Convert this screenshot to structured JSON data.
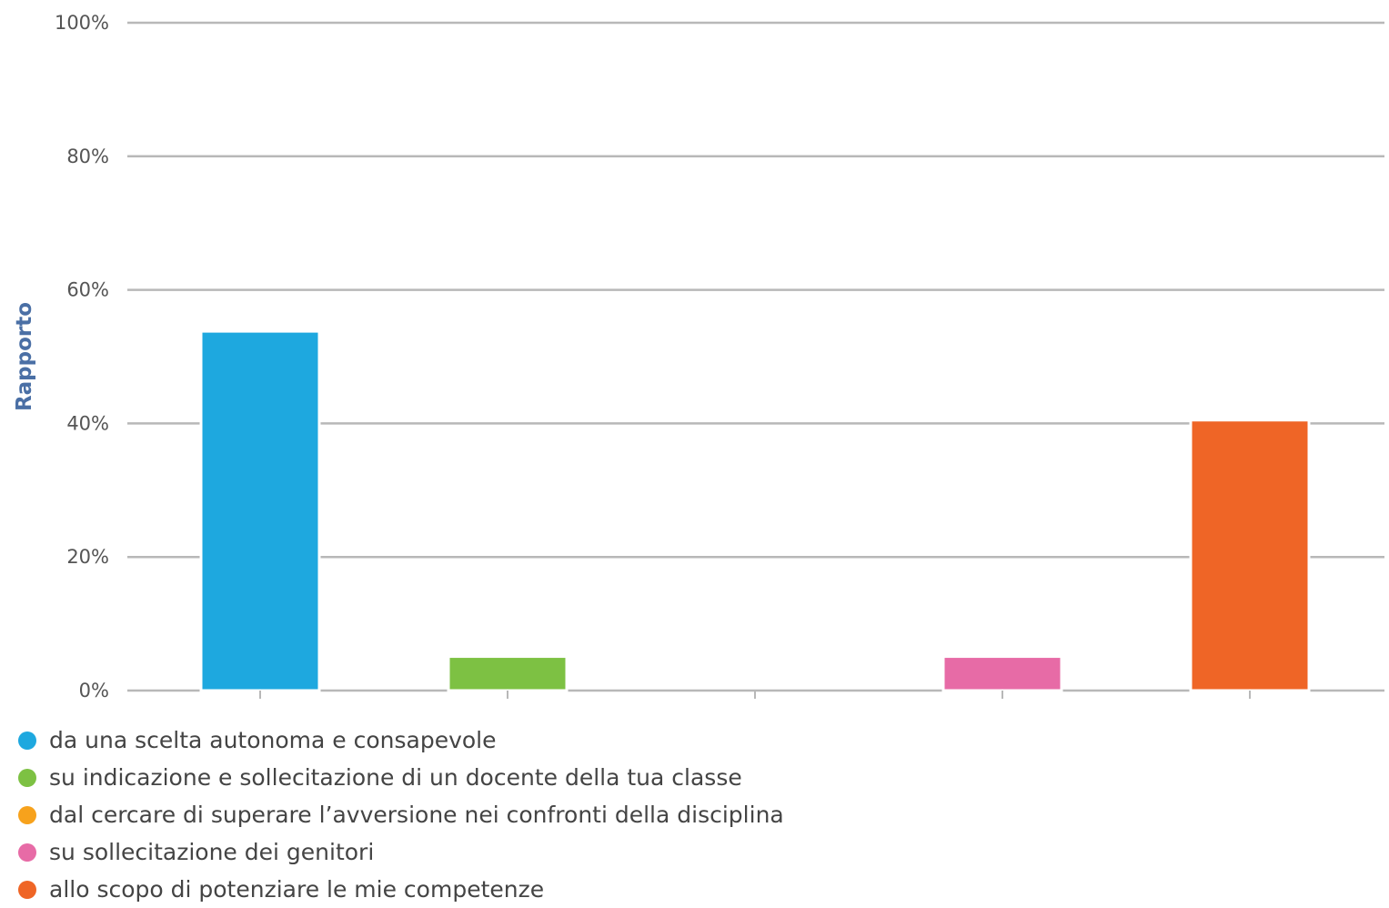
{
  "chart_data": {
    "type": "bar",
    "ylabel": "Rapporto",
    "ylim": [
      0,
      100
    ],
    "y_ticks": [
      "0%",
      "20%",
      "40%",
      "60%",
      "80%",
      "100%"
    ],
    "y_tick_values": [
      0,
      20,
      40,
      60,
      80,
      100
    ],
    "grid": true,
    "legend_position": "bottom-left",
    "categories": [
      "da una scelta autonoma e consapevole",
      "su indicazione e sollecitazione di un docente della tua classe",
      "dal cercare di superare l’avversione nei confronti della disciplina",
      "su sollecitazione dei genitori",
      "allo scopo di potenziare le mie competenze"
    ],
    "values": [
      53.8,
      5.1,
      0,
      5.1,
      40.5
    ],
    "colors": [
      "#1ea8df",
      "#7dc143",
      "#f7a21c",
      "#e76ba6",
      "#ef6526"
    ]
  }
}
